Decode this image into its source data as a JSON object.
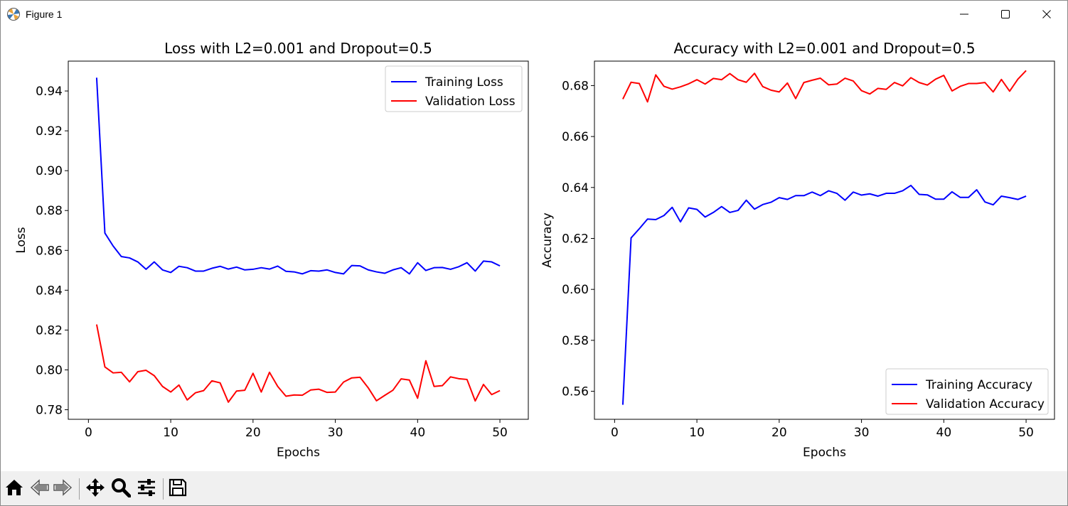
{
  "window": {
    "title": "Figure 1",
    "icons": {
      "app": "matplotlib-icon",
      "minimize": "minimize-icon",
      "maximize": "maximize-icon",
      "close": "close-icon"
    }
  },
  "toolbar": {
    "buttons": [
      {
        "name": "home-button",
        "icon": "home-icon"
      },
      {
        "name": "back-button",
        "icon": "back-arrow-icon"
      },
      {
        "name": "forward-button",
        "icon": "forward-arrow-icon"
      },
      {
        "name": "pan-button",
        "icon": "pan-icon"
      },
      {
        "name": "zoom-button",
        "icon": "zoom-icon"
      },
      {
        "name": "configure-subplots-button",
        "icon": "sliders-icon"
      },
      {
        "name": "save-button",
        "icon": "save-icon"
      }
    ]
  },
  "chart_data": [
    {
      "type": "line",
      "title": "Loss with L2=0.001 and Dropout=0.5",
      "xlabel": "Epochs",
      "ylabel": "Loss",
      "xlim": [
        -2.45,
        53.45
      ],
      "ylim": [
        0.7752,
        0.955
      ],
      "xticks": [
        0,
        10,
        20,
        30,
        40,
        50
      ],
      "yticks": [
        0.78,
        0.8,
        0.82,
        0.84,
        0.86,
        0.88,
        0.9,
        0.92,
        0.94
      ],
      "ytick_labels": [
        "0.78",
        "0.80",
        "0.82",
        "0.84",
        "0.86",
        "0.88",
        "0.90",
        "0.92",
        "0.94"
      ],
      "grid": false,
      "legend": "upper right",
      "x": [
        1,
        2,
        3,
        4,
        5,
        6,
        7,
        8,
        9,
        10,
        11,
        12,
        13,
        14,
        15,
        16,
        17,
        18,
        19,
        20,
        21,
        22,
        23,
        24,
        25,
        26,
        27,
        28,
        29,
        30,
        31,
        32,
        33,
        34,
        35,
        36,
        37,
        38,
        39,
        40,
        41,
        42,
        43,
        44,
        45,
        46,
        47,
        48,
        49,
        50
      ],
      "series": [
        {
          "name": "Training Loss",
          "color": "#0000ff",
          "values": [
            0.9467,
            0.8687,
            0.8622,
            0.8569,
            0.8562,
            0.8542,
            0.8505,
            0.8542,
            0.8502,
            0.8489,
            0.852,
            0.8513,
            0.8496,
            0.8496,
            0.851,
            0.852,
            0.8506,
            0.8516,
            0.8502,
            0.8505,
            0.8513,
            0.8506,
            0.8521,
            0.8495,
            0.8492,
            0.8482,
            0.8498,
            0.8496,
            0.8502,
            0.8489,
            0.8482,
            0.8524,
            0.8522,
            0.8502,
            0.8492,
            0.8485,
            0.8502,
            0.8513,
            0.8482,
            0.8538,
            0.8499,
            0.8513,
            0.8514,
            0.8505,
            0.8518,
            0.8538,
            0.8496,
            0.8546,
            0.8542,
            0.8522
          ]
        },
        {
          "name": "Validation Loss",
          "color": "#ff0000",
          "values": [
            0.8228,
            0.8015,
            0.7985,
            0.7988,
            0.794,
            0.7991,
            0.7998,
            0.7971,
            0.7917,
            0.7889,
            0.7924,
            0.7849,
            0.7885,
            0.7896,
            0.7945,
            0.7935,
            0.7838,
            0.7894,
            0.7898,
            0.7983,
            0.7889,
            0.7988,
            0.7917,
            0.7868,
            0.7874,
            0.7873,
            0.7899,
            0.7903,
            0.7887,
            0.7889,
            0.7939,
            0.796,
            0.7963,
            0.791,
            0.7845,
            0.7872,
            0.7898,
            0.7955,
            0.7949,
            0.7858,
            0.8046,
            0.7917,
            0.7921,
            0.7965,
            0.7956,
            0.7952,
            0.7844,
            0.7927,
            0.7876,
            0.7896
          ]
        }
      ]
    },
    {
      "type": "line",
      "title": "Accuracy with L2=0.001 and Dropout=0.5",
      "xlabel": "Epochs",
      "ylabel": "Accuracy",
      "xlim": [
        -2.45,
        53.45
      ],
      "ylim": [
        0.549,
        0.6896
      ],
      "xticks": [
        0,
        10,
        20,
        30,
        40,
        50
      ],
      "yticks": [
        0.56,
        0.58,
        0.6,
        0.62,
        0.64,
        0.66,
        0.68
      ],
      "ytick_labels": [
        "0.56",
        "0.58",
        "0.60",
        "0.62",
        "0.64",
        "0.66",
        "0.68"
      ],
      "grid": false,
      "legend": "lower right",
      "x": [
        1,
        2,
        3,
        4,
        5,
        6,
        7,
        8,
        9,
        10,
        11,
        12,
        13,
        14,
        15,
        16,
        17,
        18,
        19,
        20,
        21,
        22,
        23,
        24,
        25,
        26,
        27,
        28,
        29,
        30,
        31,
        32,
        33,
        34,
        35,
        36,
        37,
        38,
        39,
        40,
        41,
        42,
        43,
        44,
        45,
        46,
        47,
        48,
        49,
        50
      ],
      "series": [
        {
          "name": "Training Accuracy",
          "color": "#0000ff",
          "values": [
            0.5547,
            0.6202,
            0.6238,
            0.6276,
            0.6274,
            0.629,
            0.6322,
            0.6265,
            0.632,
            0.6314,
            0.6284,
            0.6302,
            0.6325,
            0.6302,
            0.631,
            0.635,
            0.6315,
            0.6333,
            0.6342,
            0.636,
            0.6353,
            0.6368,
            0.6368,
            0.6382,
            0.6368,
            0.6387,
            0.6377,
            0.635,
            0.6382,
            0.637,
            0.6375,
            0.6366,
            0.6377,
            0.6377,
            0.6387,
            0.6408,
            0.6373,
            0.6371,
            0.6354,
            0.6354,
            0.6383,
            0.6361,
            0.6361,
            0.6391,
            0.6343,
            0.6332,
            0.6366,
            0.636,
            0.6353,
            0.6366
          ]
        },
        {
          "name": "Validation Accuracy",
          "color": "#ff0000",
          "values": [
            0.6747,
            0.6813,
            0.6808,
            0.6736,
            0.6842,
            0.6797,
            0.6786,
            0.6795,
            0.6807,
            0.6823,
            0.6806,
            0.6828,
            0.6823,
            0.6847,
            0.6823,
            0.6813,
            0.6848,
            0.6796,
            0.6782,
            0.6775,
            0.681,
            0.6749,
            0.6812,
            0.6821,
            0.6829,
            0.6803,
            0.6806,
            0.6829,
            0.6818,
            0.678,
            0.6767,
            0.6789,
            0.6785,
            0.6812,
            0.6799,
            0.6831,
            0.6812,
            0.6802,
            0.6825,
            0.684,
            0.6779,
            0.6797,
            0.6808,
            0.6808,
            0.6812,
            0.6775,
            0.6824,
            0.6778,
            0.6825,
            0.6859
          ]
        }
      ]
    }
  ]
}
